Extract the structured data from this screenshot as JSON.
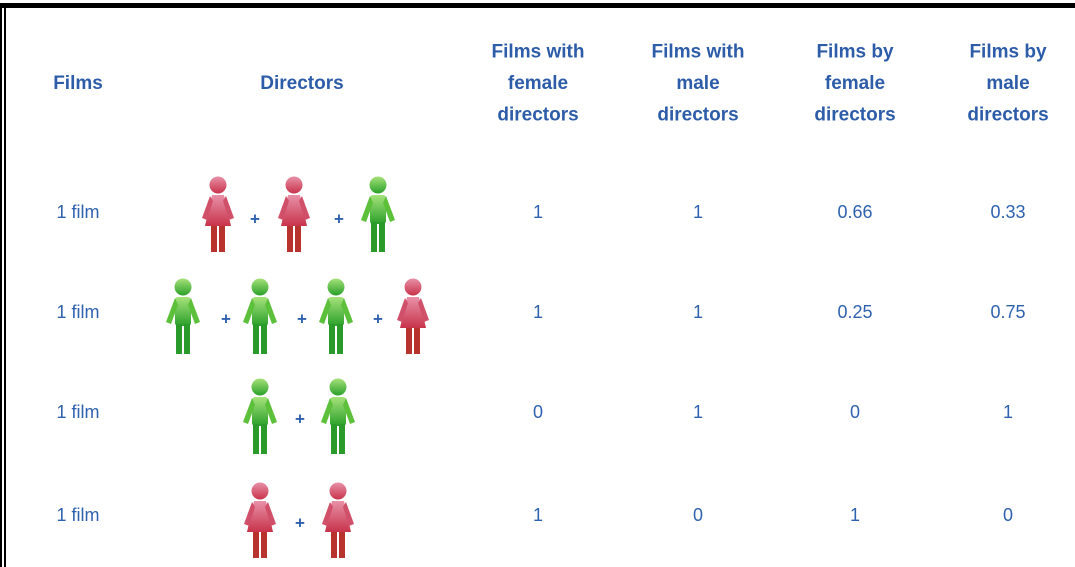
{
  "table": {
    "header": [
      [
        "Films"
      ],
      [
        "Directors"
      ],
      [
        "Films with",
        "female",
        "directors"
      ],
      [
        "Films with",
        "male",
        "directors"
      ],
      [
        "Films by",
        "female",
        "directors"
      ],
      [
        "Films by",
        "male",
        "directors"
      ]
    ],
    "rows": [
      {
        "film": "1 film",
        "values": [
          1,
          1,
          0.66,
          0.33
        ]
      },
      {
        "film": "1 film",
        "values": [
          1,
          1,
          0.25,
          0.75
        ]
      },
      {
        "film": "1 film",
        "values": [
          0,
          1,
          0,
          1
        ]
      },
      {
        "film": "1 film",
        "values": [
          1,
          0,
          1,
          0
        ]
      }
    ]
  },
  "separator": "+"
}
